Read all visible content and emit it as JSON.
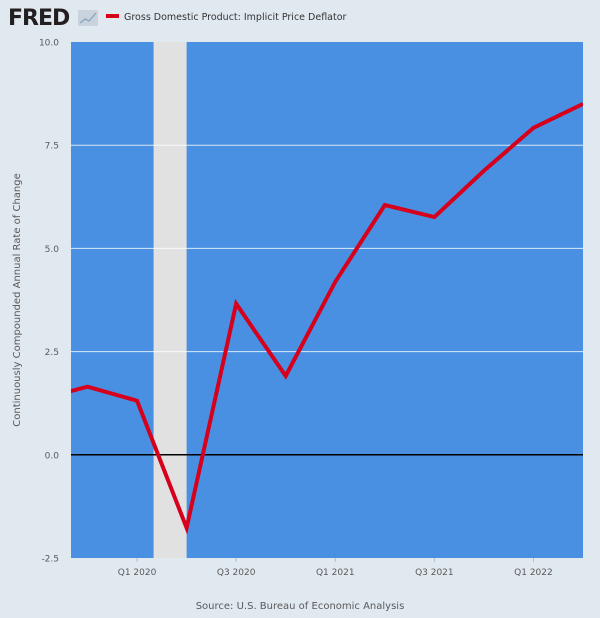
{
  "logo": "FRED",
  "chart_data": {
    "type": "line",
    "title": "",
    "ylabel": "Continuously Compounded Annual Rate of Change",
    "xlabel": "",
    "source": "Source: U.S. Bureau of Economic Analysis",
    "ylim": [
      -2.5,
      10.0
    ],
    "xlim": [
      "2019-09-01",
      "2022-04-01"
    ],
    "yticks": [
      "-2.5",
      "0.0",
      "2.5",
      "5.0",
      "7.5",
      "10.0"
    ],
    "ytick_values": [
      -2.5,
      0,
      2.5,
      5,
      7.5,
      10
    ],
    "xticks": [
      {
        "label": "Q1 2020",
        "date": "2020-01-01"
      },
      {
        "label": "Q3 2020",
        "date": "2020-07-01"
      },
      {
        "label": "Q1 2021",
        "date": "2021-01-01"
      },
      {
        "label": "Q3 2021",
        "date": "2021-07-01"
      },
      {
        "label": "Q1 2022",
        "date": "2022-01-01"
      }
    ],
    "grid": true,
    "legend_position": "top-left",
    "recession": {
      "start": "2020-02-01",
      "end": "2020-04-01"
    },
    "series": [
      {
        "name": "Gross Domestic Product: Implicit Price Deflator",
        "color": "#d6001c",
        "x": [
          "2019-07-01",
          "2019-10-01",
          "2020-01-01",
          "2020-04-01",
          "2020-07-01",
          "2020-10-01",
          "2021-01-01",
          "2021-04-01",
          "2021-07-01",
          "2021-10-01",
          "2022-01-01",
          "2022-04-01"
        ],
        "values": [
          1.33,
          1.65,
          1.31,
          -1.77,
          3.66,
          1.91,
          4.19,
          6.05,
          5.76,
          6.88,
          7.92,
          8.5
        ]
      }
    ],
    "colors": {
      "plot_bg": "#4a90e2",
      "recession": "#e1e1e1",
      "zero_line": "#000000",
      "grid": "#ffffff"
    }
  }
}
